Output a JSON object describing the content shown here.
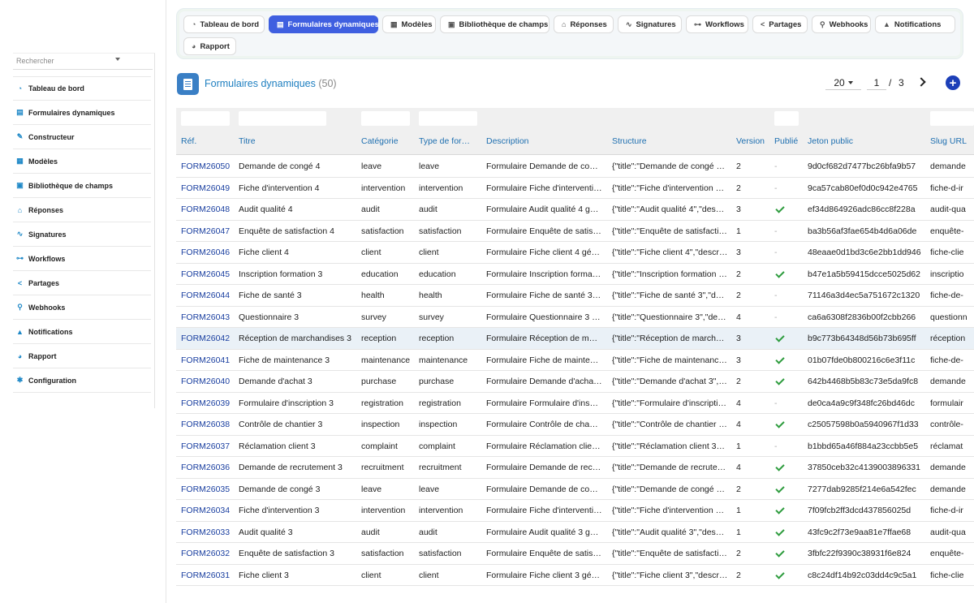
{
  "sidebar": {
    "search_placeholder": "Rechercher",
    "items": [
      {
        "label": "Tableau de bord",
        "icon": "dashboard-icon"
      },
      {
        "label": "Formulaires dynamiques",
        "icon": "form-icon"
      },
      {
        "label": "Constructeur",
        "icon": "wand-icon"
      },
      {
        "label": "Modèles",
        "icon": "templates-icon"
      },
      {
        "label": "Bibliothèque de champs",
        "icon": "field-library-icon"
      },
      {
        "label": "Réponses",
        "icon": "inbox-icon"
      },
      {
        "label": "Signatures",
        "icon": "signature-icon"
      },
      {
        "label": "Workflows",
        "icon": "workflow-icon"
      },
      {
        "label": "Partages",
        "icon": "share-icon"
      },
      {
        "label": "Webhooks",
        "icon": "webhook-icon"
      },
      {
        "label": "Notifications",
        "icon": "bell-icon"
      },
      {
        "label": "Rapport",
        "icon": "report-icon"
      },
      {
        "label": "Configuration",
        "icon": "gear-icon"
      }
    ]
  },
  "tabs": [
    {
      "label": "Tableau de bord",
      "icon": "dashboard-icon",
      "active": false
    },
    {
      "label": "Formulaires dynamiques",
      "icon": "form-icon",
      "active": true
    },
    {
      "label": "Modèles",
      "icon": "templates-icon",
      "active": false
    },
    {
      "label": "Bibliothèque de champs",
      "icon": "field-library-icon",
      "active": false
    },
    {
      "label": "Réponses",
      "icon": "inbox-icon",
      "active": false
    },
    {
      "label": "Signatures",
      "icon": "signature-icon",
      "active": false
    },
    {
      "label": "Workflows",
      "icon": "workflow-icon",
      "active": false
    },
    {
      "label": "Partages",
      "icon": "share-icon",
      "active": false
    },
    {
      "label": "Webhooks",
      "icon": "webhook-icon",
      "active": false
    },
    {
      "label": "Notifications",
      "icon": "bell-icon",
      "active": false
    },
    {
      "label": "Rapport",
      "icon": "report-icon",
      "active": false
    }
  ],
  "header": {
    "title": "Formulaires dynamiques",
    "count": "(50)"
  },
  "pagination": {
    "per_page": "20",
    "current_page": "1",
    "separator": "/",
    "total_pages": "3"
  },
  "table": {
    "columns": [
      "Réf.",
      "Titre",
      "Catégorie",
      "Type de for…",
      "Description",
      "Structure",
      "Version",
      "Publié",
      "Jeton public",
      "Slug URL"
    ],
    "rows": [
      {
        "ref": "FORM26050",
        "title": "Demande de congé 4",
        "category": "leave",
        "type": "leave",
        "description": "Formulaire Demande de co…",
        "structure": "{\"title\":\"Demande de congé …",
        "version": "2",
        "published": false,
        "token": "9d0cf682d7477bc26bfa9b57",
        "slug": "demande"
      },
      {
        "ref": "FORM26049",
        "title": "Fiche d'intervention 4",
        "category": "intervention",
        "type": "intervention",
        "description": "Formulaire Fiche d'interventi…",
        "structure": "{\"title\":\"Fiche d'intervention …",
        "version": "2",
        "published": false,
        "token": "9ca57cab80ef0d0c942e4765",
        "slug": "fiche-d-ir"
      },
      {
        "ref": "FORM26048",
        "title": "Audit qualité 4",
        "category": "audit",
        "type": "audit",
        "description": "Formulaire Audit qualité 4 g…",
        "structure": "{\"title\":\"Audit qualité 4\",\"des…",
        "version": "3",
        "published": true,
        "token": "ef34d864926adc86cc8f228a",
        "slug": "audit-qua"
      },
      {
        "ref": "FORM26047",
        "title": "Enquête de satisfaction 4",
        "category": "satisfaction",
        "type": "satisfaction",
        "description": "Formulaire Enquête de satis…",
        "structure": "{\"title\":\"Enquête de satisfacti…",
        "version": "1",
        "published": false,
        "token": "ba3b56af3fae654b4d6a06de",
        "slug": "enquête-"
      },
      {
        "ref": "FORM26046",
        "title": "Fiche client 4",
        "category": "client",
        "type": "client",
        "description": "Formulaire Fiche client 4 gé…",
        "structure": "{\"title\":\"Fiche client 4\",\"descr…",
        "version": "3",
        "published": false,
        "token": "48eaae0d1bd3c6e2bb1dd946",
        "slug": "fiche-clie"
      },
      {
        "ref": "FORM26045",
        "title": "Inscription formation 3",
        "category": "education",
        "type": "education",
        "description": "Formulaire Inscription forma…",
        "structure": "{\"title\":\"Inscription formation …",
        "version": "2",
        "published": true,
        "token": "b47e1a5b59415dcce5025d62",
        "slug": "inscriptio"
      },
      {
        "ref": "FORM26044",
        "title": "Fiche de santé 3",
        "category": "health",
        "type": "health",
        "description": "Formulaire Fiche de santé 3…",
        "structure": "{\"title\":\"Fiche de santé 3\",\"d…",
        "version": "2",
        "published": false,
        "token": "71146a3d4ec5a751672c1320",
        "slug": "fiche-de-"
      },
      {
        "ref": "FORM26043",
        "title": "Questionnaire 3",
        "category": "survey",
        "type": "survey",
        "description": "Formulaire Questionnaire 3 …",
        "structure": "{\"title\":\"Questionnaire 3\",\"de…",
        "version": "4",
        "published": false,
        "token": "ca6a6308f2836b00f2cbb266",
        "slug": "questionn"
      },
      {
        "ref": "FORM26042",
        "title": "Réception de marchandises 3",
        "category": "reception",
        "type": "reception",
        "description": "Formulaire Réception de m…",
        "structure": "{\"title\":\"Réception de march…",
        "version": "3",
        "published": true,
        "token": "b9c773b64348d56b73b695ff",
        "slug": "réception"
      },
      {
        "ref": "FORM26041",
        "title": "Fiche de maintenance 3",
        "category": "maintenance",
        "type": "maintenance",
        "description": "Formulaire Fiche de mainte…",
        "structure": "{\"title\":\"Fiche de maintenanc…",
        "version": "3",
        "published": true,
        "token": "01b07fde0b800216c6e3f11c",
        "slug": "fiche-de-"
      },
      {
        "ref": "FORM26040",
        "title": "Demande d'achat 3",
        "category": "purchase",
        "type": "purchase",
        "description": "Formulaire Demande d'acha…",
        "structure": "{\"title\":\"Demande d'achat 3\",…",
        "version": "2",
        "published": true,
        "token": "642b4468b5b83c73e5da9fc8",
        "slug": "demande"
      },
      {
        "ref": "FORM26039",
        "title": "Formulaire d'inscription 3",
        "category": "registration",
        "type": "registration",
        "description": "Formulaire Formulaire d'ins…",
        "structure": "{\"title\":\"Formulaire d'inscripti…",
        "version": "4",
        "published": false,
        "token": "de0ca4a9c9f348fc26bd46dc",
        "slug": "formulair"
      },
      {
        "ref": "FORM26038",
        "title": "Contrôle de chantier 3",
        "category": "inspection",
        "type": "inspection",
        "description": "Formulaire Contrôle de cha…",
        "structure": "{\"title\":\"Contrôle de chantier …",
        "version": "4",
        "published": true,
        "token": "c25057598b0a5940967f1d33",
        "slug": "contrôle-"
      },
      {
        "ref": "FORM26037",
        "title": "Réclamation client 3",
        "category": "complaint",
        "type": "complaint",
        "description": "Formulaire Réclamation clie…",
        "structure": "{\"title\":\"Réclamation client 3…",
        "version": "1",
        "published": false,
        "token": "b1bbd65a46f884a23ccbb5e5",
        "slug": "réclamat"
      },
      {
        "ref": "FORM26036",
        "title": "Demande de recrutement 3",
        "category": "recruitment",
        "type": "recruitment",
        "description": "Formulaire Demande de rec…",
        "structure": "{\"title\":\"Demande de recrute…",
        "version": "4",
        "published": true,
        "token": "37850ceb32c4139003896331",
        "slug": "demande"
      },
      {
        "ref": "FORM26035",
        "title": "Demande de congé 3",
        "category": "leave",
        "type": "leave",
        "description": "Formulaire Demande de co…",
        "structure": "{\"title\":\"Demande de congé …",
        "version": "2",
        "published": true,
        "token": "7277dab9285f214e6a542fec",
        "slug": "demande"
      },
      {
        "ref": "FORM26034",
        "title": "Fiche d'intervention 3",
        "category": "intervention",
        "type": "intervention",
        "description": "Formulaire Fiche d'interventi…",
        "structure": "{\"title\":\"Fiche d'intervention …",
        "version": "1",
        "published": true,
        "token": "7f09fcb2ff3dcd437856025d",
        "slug": "fiche-d-ir"
      },
      {
        "ref": "FORM26033",
        "title": "Audit qualité 3",
        "category": "audit",
        "type": "audit",
        "description": "Formulaire Audit qualité 3 g…",
        "structure": "{\"title\":\"Audit qualité 3\",\"des…",
        "version": "1",
        "published": true,
        "token": "43fc9c2f73e9aa81e7ffae68",
        "slug": "audit-qua"
      },
      {
        "ref": "FORM26032",
        "title": "Enquête de satisfaction 3",
        "category": "satisfaction",
        "type": "satisfaction",
        "description": "Formulaire Enquête de satis…",
        "structure": "{\"title\":\"Enquête de satisfacti…",
        "version": "2",
        "published": true,
        "token": "3fbfc22f9390c38931f6e824",
        "slug": "enquête-"
      },
      {
        "ref": "FORM26031",
        "title": "Fiche client 3",
        "category": "client",
        "type": "client",
        "description": "Formulaire Fiche client 3 gé…",
        "structure": "{\"title\":\"Fiche client 3\",\"descr…",
        "version": "2",
        "published": true,
        "token": "c8c24df14b92c03dd4c9c5a1",
        "slug": "fiche-clie"
      }
    ],
    "highlighted_row": "FORM26042",
    "unpublished_mark": "-"
  },
  "colors": {
    "accent": "#3f5fe0",
    "link": "#1a3fa0",
    "header_text": "#1e6fb0",
    "check": "#2e9c3e"
  }
}
